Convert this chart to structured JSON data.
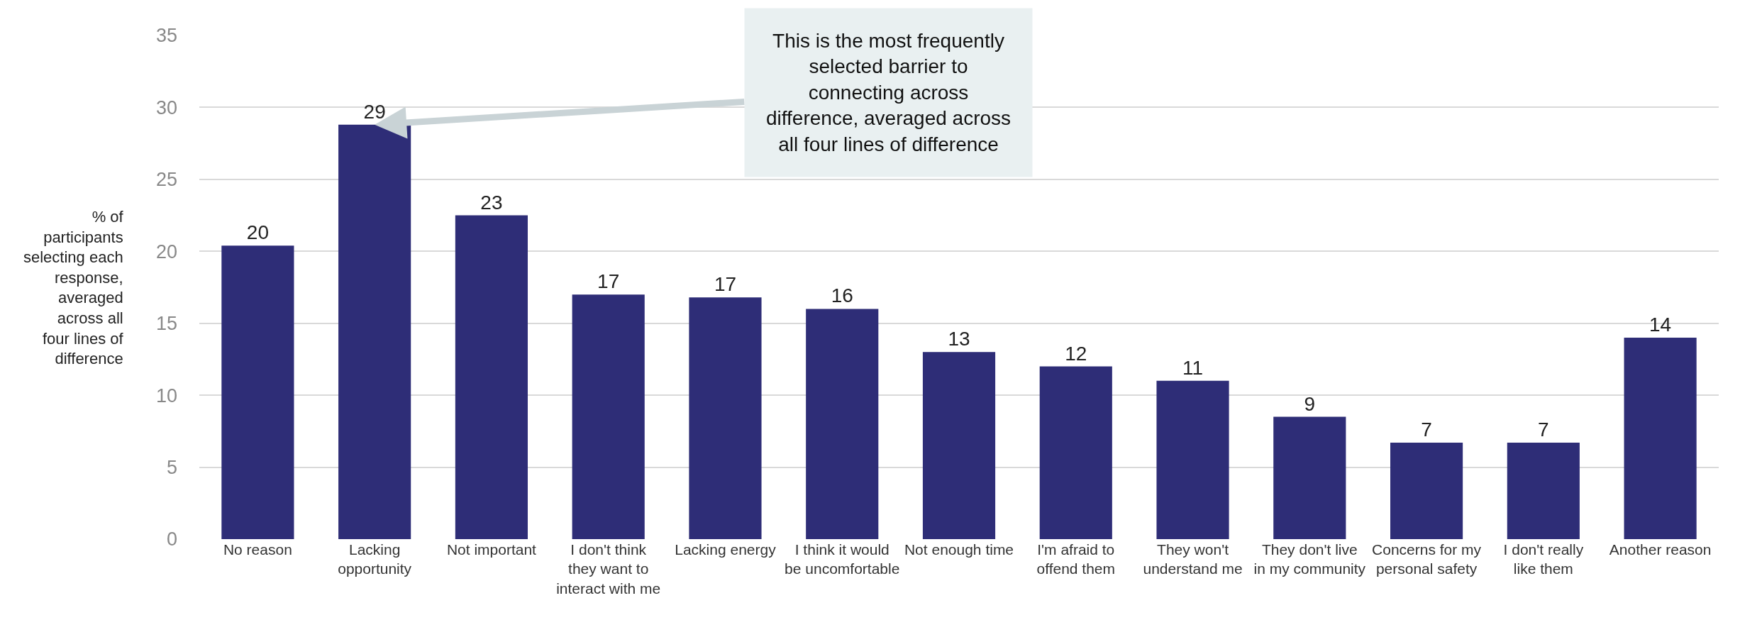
{
  "chart_data": {
    "type": "bar",
    "ylabel": "% of participants selecting each response, averaged across all four lines of difference",
    "categories": [
      "No reason",
      "Lacking opportunity",
      "Not important",
      "I don't think they want to interact with me",
      "Lacking energy",
      "I think it would be uncomfortable",
      "Not enough time",
      "I'm afraid to offend them",
      "They won't understand me",
      "They don't live in my community",
      "Concerns for my personal safety",
      "I don't really like them",
      "Another reason"
    ],
    "values": [
      20.4,
      28.8,
      22.5,
      17.0,
      16.8,
      16.0,
      13.0,
      12.0,
      11.0,
      8.5,
      6.7,
      6.7,
      14.0
    ],
    "value_labels": [
      "20",
      "29",
      "23",
      "17",
      "17",
      "16",
      "13",
      "12",
      "11",
      "9",
      "7",
      "7",
      "14"
    ],
    "color": "#2e2d77",
    "ylim": [
      0,
      35
    ],
    "yticks": [
      0,
      5,
      10,
      15,
      20,
      25,
      30,
      35
    ],
    "grid": "y",
    "annotations": [
      {
        "text": "This is the most frequently selected barrier to connecting across difference, averaged across all four lines of difference",
        "x": "Lacking opportunity",
        "y": 28.8
      }
    ]
  }
}
